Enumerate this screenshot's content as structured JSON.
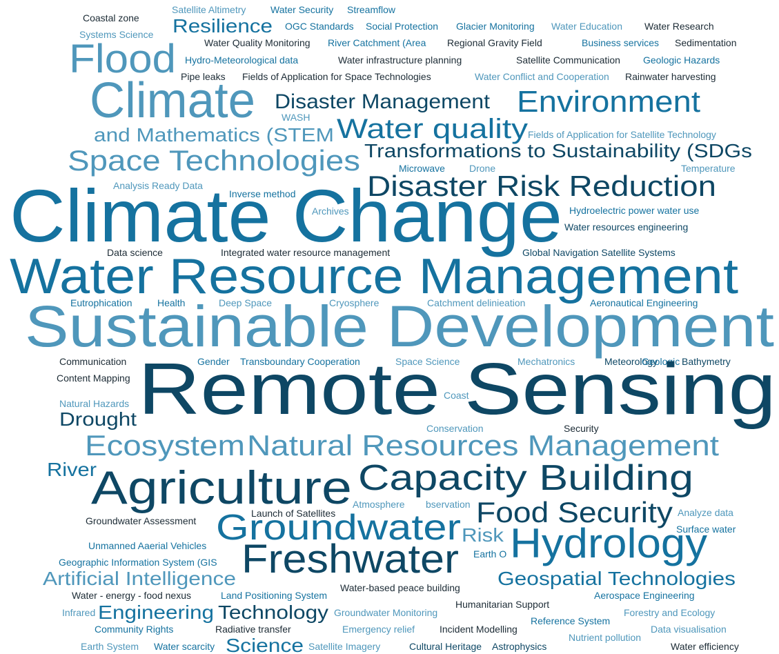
{
  "words": [
    "Coastal zone",
    "Satellite Altimetry",
    "Water Security",
    "Streamflow",
    "Systems Science",
    "Resilience",
    "OGC Standards",
    "Social Protection",
    "Glacier Monitoring",
    "Water Education",
    "Water Research",
    "Flood",
    "Water Quality Monitoring",
    "River Catchment (Area",
    "Regional Gravity Field",
    "Business services",
    "Sedimentation",
    "Hydro-Meteorological data",
    "Water infrastructure planning",
    "Satellite Communication",
    "Geologic Hazards",
    "Pipe leaks",
    "Fields of Application for Space Technologies",
    "Water Conflict and Cooperation",
    "Rainwater harvesting",
    "Climate",
    "Disaster Management",
    "Environment",
    "WASH",
    "and Mathematics (STEM",
    "Water quality",
    "Fields of Application for Satellite Technology",
    "Transformations to Sustainability (SDGs",
    "Space Technologies",
    "Microwave",
    "Drone",
    "Temperature",
    "Disaster Risk Reduction",
    "Analysis Ready Data",
    "Inverse method",
    "Climate Change",
    "Archives",
    "Hydroelectric power water use",
    "Water resources engineering",
    "Data science",
    "Integrated water resource management",
    "Global Navigation Satellite Systems",
    "Water Resource Management",
    "Eutrophication",
    "Health",
    "Deep Space",
    "Cryosphere",
    "Catchment delinieation",
    "Aeronautical Engineering",
    "Sustainable Development",
    "Communication",
    "Gender",
    "Transboundary Cooperation",
    "Space Science",
    "Mechatronics",
    "Meteorology",
    "Geologic",
    "Bathymetry",
    "Content Mapping",
    "Remote Sensing",
    "Natural Hazards",
    "Coast",
    "Drought",
    "Conservation",
    "Security",
    "Ecosystem",
    "Natural Resources Management",
    "River",
    "Agriculture",
    "Capacity Building",
    "Atmosphere",
    "bservation",
    "Launch of Satellites",
    "Food Security",
    "Analyze data",
    "Groundwater Assessment",
    "Groundwater",
    "Risk",
    "Surface water",
    "Unmanned Aaerial Vehicles",
    "Hydrology",
    "Freshwater",
    "Earth O",
    "Geographic Information System (GIS",
    "Artificial Intelligence",
    "Geospatial Technologies",
    "Water - energy - food nexus",
    "Land Positioning System",
    "Water-based peace building",
    "Aerospace Engineering",
    "Infrared",
    "Engineering",
    "Technology",
    "Groundwater Monitoring",
    "Humanitarian Support",
    "Forestry and Ecology",
    "Reference System",
    "Community Rights",
    "Radiative transfer",
    "Emergency relief",
    "Incident Modelling",
    "Nutrient pollution",
    "Data visualisation",
    "Earth System",
    "Water scarcity",
    "Science",
    "Satellite Imagery",
    "Cultural Heritage",
    "Astrophysics",
    "Water efficiency"
  ]
}
